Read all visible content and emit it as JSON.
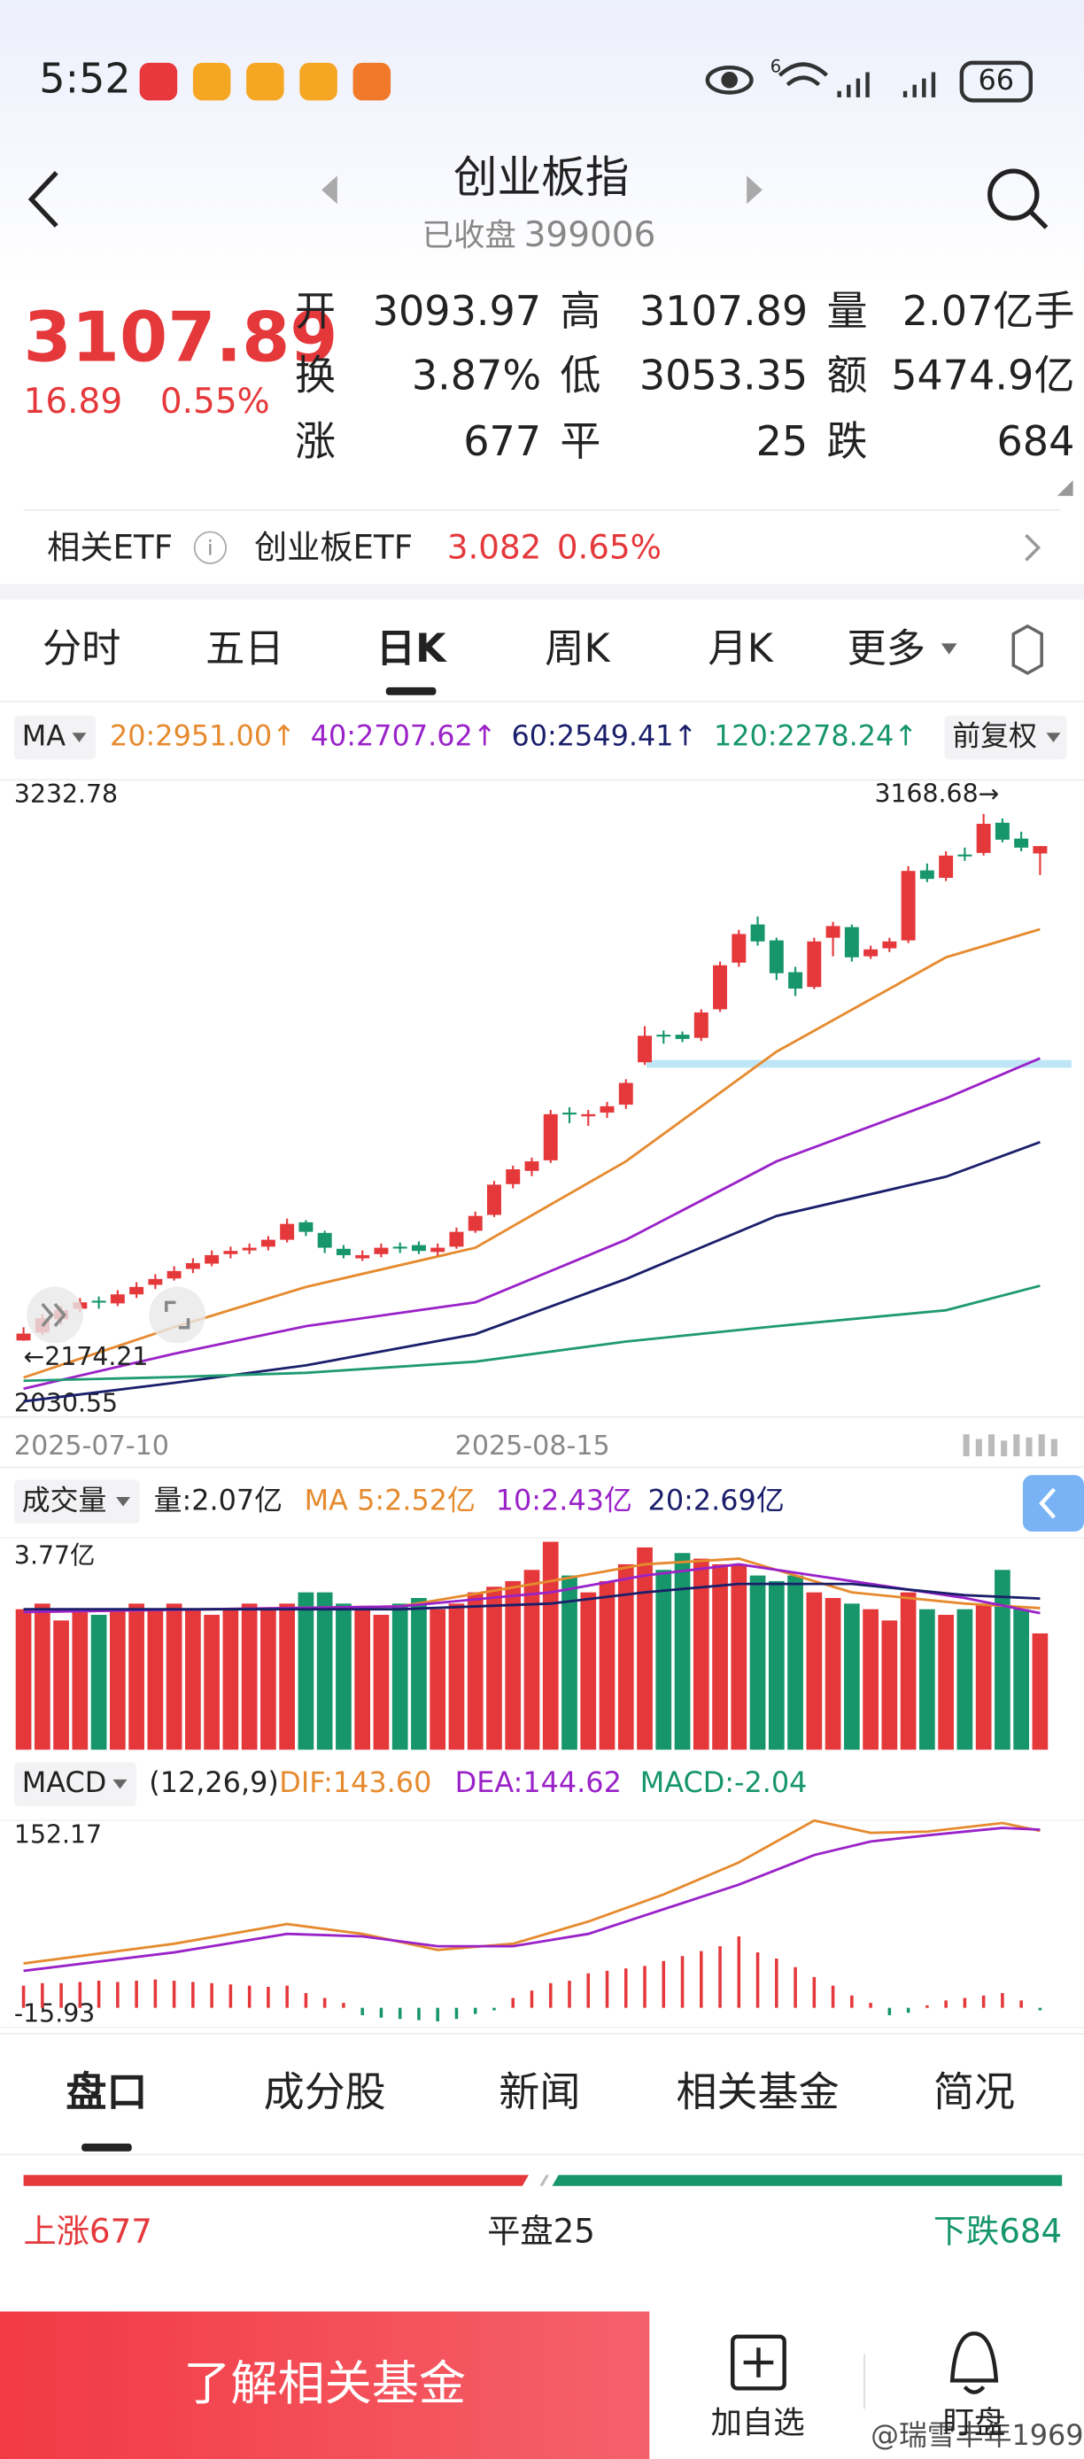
{
  "status_bar": {
    "time": "5:52",
    "network": "6",
    "battery": "66"
  },
  "header": {
    "title": "创业板指",
    "status": "已收盘",
    "code": "399006"
  },
  "quote": {
    "price": "3107.89",
    "change": "16.89",
    "change_pct": "0.55%",
    "fields": [
      {
        "label": "开",
        "value": "3093.97"
      },
      {
        "label": "高",
        "value": "3107.89"
      },
      {
        "label": "量",
        "value": "2.07亿手"
      },
      {
        "label": "换",
        "value": "3.87%"
      },
      {
        "label": "低",
        "value": "3053.35"
      },
      {
        "label": "额",
        "value": "5474.9亿"
      },
      {
        "label": "涨",
        "value": "677"
      },
      {
        "label": "平",
        "value": "25"
      },
      {
        "label": "跌",
        "value": "684"
      }
    ]
  },
  "etf": {
    "label": "相关ETF",
    "name": "创业板ETF",
    "price": "3.082",
    "change_pct": "0.65%"
  },
  "chart_tabs": [
    "分时",
    "五日",
    "日K",
    "周K",
    "月K",
    "更多"
  ],
  "ma_legend": {
    "selector": "MA",
    "items": [
      "20:2951.00↑",
      "40:2707.62↑",
      "60:2549.41↑",
      "120:2278.24↑"
    ],
    "adjust": "前复权"
  },
  "kline": {
    "type": "candlestick",
    "ylim": [
      2030.55,
      3232.78
    ],
    "yticks": [
      3232.78,
      2030.55
    ],
    "dates": [
      "2025-07-10",
      "2025-08-15"
    ],
    "annotations": [
      "3168.68→",
      "←2174.21"
    ],
    "support_line": 2697,
    "candles": [
      [
        2175,
        2200,
        2174.21,
        2188
      ],
      [
        2190,
        2225,
        2185,
        2217
      ],
      [
        2215,
        2240,
        2205,
        2232
      ],
      [
        2235,
        2255,
        2228,
        2247
      ],
      [
        2250,
        2258,
        2235,
        2247
      ],
      [
        2245,
        2270,
        2240,
        2262
      ],
      [
        2262,
        2285,
        2255,
        2276
      ],
      [
        2280,
        2300,
        2272,
        2291
      ],
      [
        2292,
        2315,
        2288,
        2306
      ],
      [
        2310,
        2330,
        2302,
        2321
      ],
      [
        2320,
        2345,
        2315,
        2336
      ],
      [
        2338,
        2352,
        2330,
        2344
      ],
      [
        2345,
        2358,
        2338,
        2350
      ],
      [
        2352,
        2372,
        2345,
        2365
      ],
      [
        2365,
        2405,
        2360,
        2395
      ],
      [
        2398,
        2402,
        2372,
        2380
      ],
      [
        2378,
        2382,
        2340,
        2350
      ],
      [
        2348,
        2355,
        2330,
        2336
      ],
      [
        2330,
        2345,
        2325,
        2336
      ],
      [
        2338,
        2358,
        2332,
        2350
      ],
      [
        2352,
        2360,
        2340,
        2350
      ],
      [
        2355,
        2362,
        2338,
        2344
      ],
      [
        2342,
        2358,
        2335,
        2350
      ],
      [
        2352,
        2388,
        2348,
        2380
      ],
      [
        2382,
        2418,
        2378,
        2410
      ],
      [
        2412,
        2476,
        2408,
        2469
      ],
      [
        2470,
        2505,
        2462,
        2498
      ],
      [
        2495,
        2520,
        2485,
        2513
      ],
      [
        2515,
        2610,
        2510,
        2602
      ],
      [
        2605,
        2615,
        2585,
        2602
      ],
      [
        2598,
        2610,
        2580,
        2602
      ],
      [
        2605,
        2625,
        2595,
        2617
      ],
      [
        2620,
        2668,
        2612,
        2661
      ],
      [
        2700,
        2768,
        2695,
        2750
      ],
      [
        2752,
        2760,
        2735,
        2750
      ],
      [
        2752,
        2758,
        2738,
        2744
      ],
      [
        2746,
        2800,
        2740,
        2794
      ],
      [
        2800,
        2890,
        2795,
        2883
      ],
      [
        2888,
        2950,
        2880,
        2942
      ],
      [
        2960,
        2975,
        2920,
        2928
      ],
      [
        2930,
        2935,
        2855,
        2868
      ],
      [
        2870,
        2880,
        2825,
        2839
      ],
      [
        2842,
        2935,
        2838,
        2928
      ],
      [
        2935,
        2965,
        2900,
        2957
      ],
      [
        2955,
        2960,
        2890,
        2898
      ],
      [
        2900,
        2920,
        2895,
        2913
      ],
      [
        2915,
        2935,
        2908,
        2928
      ],
      [
        2930,
        3070,
        2925,
        3061
      ],
      [
        3062,
        3075,
        3040,
        3046
      ],
      [
        3048,
        3098,
        3042,
        3090
      ],
      [
        3092,
        3105,
        3080,
        3090
      ],
      [
        3095,
        3168.68,
        3090,
        3150
      ],
      [
        3152,
        3160,
        3115,
        3120
      ],
      [
        3122,
        3135,
        3098,
        3105
      ],
      [
        3093.97,
        3107.89,
        3053.35,
        3107.89
      ]
    ],
    "ma_lines": [
      {
        "color": "#e68a2e",
        "x": [
          0,
          8,
          15,
          24,
          32,
          40,
          49,
          54
        ],
        "values": [
          2105,
          2200,
          2276,
          2350,
          2513,
          2720,
          2898,
          2951
        ]
      },
      {
        "color": "#9a22c8",
        "x": [
          0,
          8,
          15,
          24,
          32,
          40,
          49,
          54
        ],
        "values": [
          2084,
          2150,
          2202,
          2247,
          2365,
          2513,
          2632,
          2707.62
        ]
      },
      {
        "color": "#1b1f6b",
        "x": [
          0,
          8,
          15,
          24,
          32,
          40,
          49,
          54
        ],
        "values": [
          2060,
          2095,
          2128,
          2187,
          2291,
          2410,
          2484,
          2549.41
        ]
      },
      {
        "color": "#1f9a72",
        "x": [
          0,
          8,
          15,
          24,
          32,
          40,
          49,
          54
        ],
        "values": [
          2099,
          2106,
          2114,
          2135,
          2173,
          2202,
          2232,
          2278.24
        ]
      }
    ]
  },
  "volume": {
    "type": "bar",
    "selector": "成交量",
    "items": [
      "量:2.07亿",
      "MA 5:2.52亿",
      "10:2.43亿",
      "20:2.69亿"
    ],
    "ylim": [
      0,
      3.77
    ],
    "yticks": [
      {
        "value": 3.77,
        "label": "3.77亿"
      }
    ],
    "values": [
      2.5,
      2.6,
      2.3,
      2.5,
      2.4,
      2.5,
      2.6,
      2.5,
      2.6,
      2.5,
      2.4,
      2.5,
      2.6,
      2.5,
      2.6,
      2.8,
      2.8,
      2.6,
      2.5,
      2.4,
      2.6,
      2.7,
      2.5,
      2.6,
      2.8,
      2.9,
      3.0,
      3.2,
      3.7,
      3.1,
      2.8,
      3.0,
      3.3,
      3.6,
      3.2,
      3.5,
      3.4,
      3.3,
      3.3,
      3.1,
      3.0,
      3.1,
      2.8,
      2.7,
      2.6,
      2.5,
      2.3,
      2.8,
      2.5,
      2.4,
      2.5,
      2.6,
      3.2,
      2.5,
      2.07
    ],
    "ma_lines": [
      {
        "color": "#e68a2e",
        "x": [
          0,
          10,
          20,
          28,
          33,
          38,
          44,
          50,
          54
        ],
        "values": [
          2.45,
          2.5,
          2.55,
          3.0,
          3.3,
          3.4,
          2.8,
          2.6,
          2.52
        ]
      },
      {
        "color": "#9a22c8",
        "x": [
          0,
          10,
          20,
          28,
          33,
          38,
          44,
          50,
          54
        ],
        "values": [
          2.45,
          2.5,
          2.55,
          2.8,
          3.1,
          3.3,
          3.0,
          2.7,
          2.43
        ]
      },
      {
        "color": "#1b1f6b",
        "x": [
          0,
          10,
          20,
          28,
          33,
          38,
          44,
          50,
          54
        ],
        "values": [
          2.5,
          2.5,
          2.5,
          2.6,
          2.8,
          2.95,
          2.95,
          2.75,
          2.69
        ]
      }
    ]
  },
  "macd": {
    "type": "bar",
    "selector": "MACD",
    "params": "(12,26,9)",
    "items": [
      "DIF:143.60",
      "DEA:144.62",
      "MACD:-2.04"
    ],
    "ylim": [
      -15.93,
      152.17
    ],
    "yticks": [
      152.17,
      -15.93
    ],
    "values": [
      18,
      20,
      20,
      21,
      22,
      21,
      22,
      23,
      22,
      21,
      20,
      19,
      18,
      17,
      18,
      12,
      8,
      4,
      -6,
      -8,
      -9,
      -10,
      -11,
      -9,
      -5,
      -2,
      8,
      14,
      20,
      22,
      28,
      30,
      32,
      34,
      38,
      42,
      46,
      50,
      58,
      45,
      40,
      33,
      25,
      18,
      10,
      4,
      -6,
      -4,
      2,
      6,
      8,
      10,
      12,
      6,
      -2.04
    ],
    "lines": [
      {
        "color": "#e68a2e",
        "x": [
          0,
          8,
          14,
          18,
          22,
          26,
          30,
          34,
          38,
          42,
          45,
          48,
          52,
          54
        ],
        "values": [
          36,
          52,
          68,
          60,
          47,
          52,
          70,
          92,
          118,
          152,
          142,
          143,
          150,
          143.6
        ]
      },
      {
        "color": "#9a22c8",
        "x": [
          0,
          8,
          14,
          18,
          22,
          26,
          30,
          34,
          38,
          42,
          45,
          48,
          52,
          54
        ],
        "values": [
          30,
          45,
          60,
          58,
          50,
          50,
          60,
          80,
          100,
          124,
          135,
          140,
          146,
          144.62
        ]
      }
    ]
  },
  "bottom_tabs": [
    "盘口",
    "成分股",
    "新闻",
    "相关基金",
    "简况"
  ],
  "breadth": {
    "up": "上涨677",
    "flat": "平盘25",
    "down": "下跌684"
  },
  "footer": {
    "button": "了解相关基金",
    "add": "加自选",
    "watch": "盯盘",
    "watermark": "@瑞雪丰年1969"
  }
}
